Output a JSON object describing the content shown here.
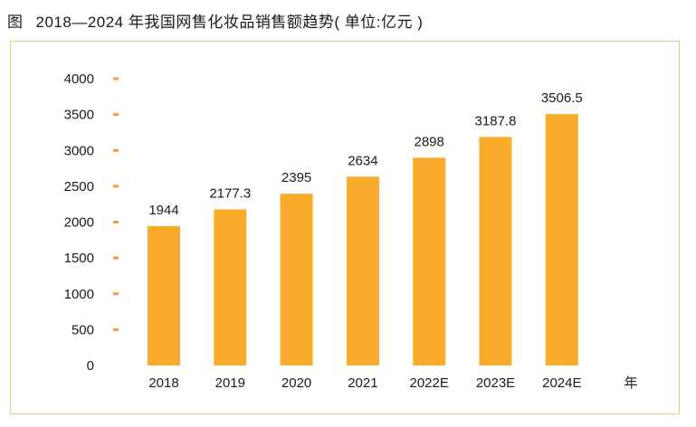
{
  "figure": {
    "label": "图",
    "title": "2018—2024 年我国网售化妆品销售额趋势( 单位:亿元 )"
  },
  "colors": {
    "bar": "#f9ab2c",
    "tick_mark": "#f0a032",
    "frame": "#f4c87a"
  },
  "chart_data": {
    "type": "bar",
    "title": "2018—2024 年我国网售化妆品销售额趋势( 单位:亿元 )",
    "xlabel": "年",
    "ylabel": "",
    "ylim": [
      0,
      4000
    ],
    "yticks": [
      0,
      500,
      1000,
      1500,
      2000,
      2500,
      3000,
      3500,
      4000
    ],
    "categories": [
      "2018",
      "2019",
      "2020",
      "2021",
      "2022E",
      "2023E",
      "2024E"
    ],
    "values": [
      1944,
      2177.3,
      2395,
      2634,
      2898,
      3187.8,
      3506.5
    ],
    "value_labels": [
      "1944",
      "2177.3",
      "2395",
      "2634",
      "2898",
      "3187.8",
      "3506.5"
    ],
    "grid": false,
    "legend": "none"
  }
}
